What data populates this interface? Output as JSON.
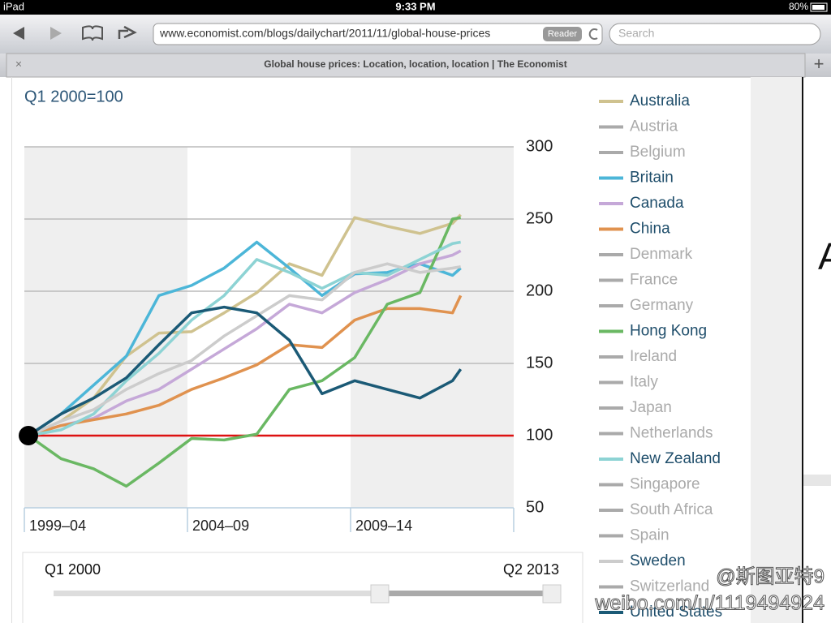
{
  "status_bar": {
    "device": "iPad",
    "time": "9:33 PM",
    "battery": "80%"
  },
  "browser": {
    "url": "www.economist.com/blogs/dailychart/2011/11/global-house-prices",
    "reader_button": "Reader",
    "search_placeholder": "Search",
    "tab_title": "Global house prices: Location, location, location | The Economist"
  },
  "chart_data": {
    "type": "line",
    "subtitle": "Q1 2000=100",
    "x": [
      2000,
      2001,
      2002,
      2003,
      2004,
      2005,
      2006,
      2007,
      2008,
      2009,
      2010,
      2011,
      2012,
      2013,
      2013.25
    ],
    "xlim": [
      1999.875,
      2014.875
    ],
    "x_bands": [
      "1999–04",
      "2004–09",
      "2009–14"
    ],
    "ylim": [
      50,
      300
    ],
    "yticks": [
      50,
      100,
      150,
      200,
      250,
      300
    ],
    "grid": true,
    "baseline": {
      "value": 100,
      "color": "#dd1111"
    },
    "index_point": {
      "x": 2000,
      "y": 100
    },
    "series": [
      {
        "name": "Australia",
        "color": "#cfc28f",
        "highlighted": true,
        "values": [
          100,
          110,
          126,
          155,
          171,
          172,
          185,
          199,
          219,
          211,
          251,
          245,
          240,
          247,
          253
        ]
      },
      {
        "name": "Austria",
        "color": "#aaaaaa",
        "highlighted": false
      },
      {
        "name": "Belgium",
        "color": "#aaaaaa",
        "highlighted": false
      },
      {
        "name": "Britain",
        "color": "#4cb6d8",
        "highlighted": true,
        "values": [
          100,
          115,
          135,
          155,
          197,
          204,
          216,
          234,
          216,
          197,
          212,
          213,
          219,
          211,
          216
        ]
      },
      {
        "name": "Canada",
        "color": "#c5a8d8",
        "highlighted": true,
        "values": [
          100,
          107,
          112,
          124,
          132,
          146,
          160,
          174,
          191,
          185,
          199,
          208,
          219,
          225,
          228
        ]
      },
      {
        "name": "China",
        "color": "#e0924f",
        "highlighted": true,
        "values": [
          100,
          107,
          111,
          115,
          121,
          132,
          140,
          149,
          163,
          161,
          180,
          188,
          188,
          185,
          197
        ]
      },
      {
        "name": "Denmark",
        "color": "#aaaaaa",
        "highlighted": false
      },
      {
        "name": "France",
        "color": "#aaaaaa",
        "highlighted": false
      },
      {
        "name": "Germany",
        "color": "#aaaaaa",
        "highlighted": false
      },
      {
        "name": "Hong Kong",
        "color": "#6ab863",
        "highlighted": true,
        "values": [
          100,
          84,
          77,
          65,
          81,
          98,
          97,
          101,
          132,
          138,
          154,
          191,
          199,
          250,
          251
        ]
      },
      {
        "name": "Ireland",
        "color": "#aaaaaa",
        "highlighted": false
      },
      {
        "name": "Italy",
        "color": "#aaaaaa",
        "highlighted": false
      },
      {
        "name": "Japan",
        "color": "#aaaaaa",
        "highlighted": false
      },
      {
        "name": "Netherlands",
        "color": "#aaaaaa",
        "highlighted": false
      },
      {
        "name": "New Zealand",
        "color": "#8dd3d4",
        "highlighted": true,
        "values": [
          100,
          104,
          115,
          138,
          157,
          180,
          197,
          222,
          213,
          202,
          213,
          211,
          222,
          233,
          234
        ]
      },
      {
        "name": "Singapore",
        "color": "#aaaaaa",
        "highlighted": false
      },
      {
        "name": "South Africa",
        "color": "#aaaaaa",
        "highlighted": false
      },
      {
        "name": "Spain",
        "color": "#aaaaaa",
        "highlighted": false
      },
      {
        "name": "Sweden",
        "color": "#cccccc",
        "highlighted": true,
        "values": [
          100,
          110,
          118,
          132,
          143,
          152,
          169,
          183,
          197,
          194,
          213,
          219,
          213,
          216,
          217
        ]
      },
      {
        "name": "Switzerland",
        "color": "#aaaaaa",
        "highlighted": false
      },
      {
        "name": "United States",
        "color": "#1b5a76",
        "highlighted": true,
        "values": [
          100,
          115,
          126,
          140,
          163,
          185,
          189,
          185,
          166,
          129,
          138,
          132,
          126,
          138,
          146
        ]
      }
    ]
  },
  "slider": {
    "start_label": "Q1 2000",
    "end_label": "Q2 2013"
  },
  "side_text": "A",
  "watermark": {
    "handle": "@斯图亚特9",
    "url": "weibo.com/u/1119494924"
  }
}
